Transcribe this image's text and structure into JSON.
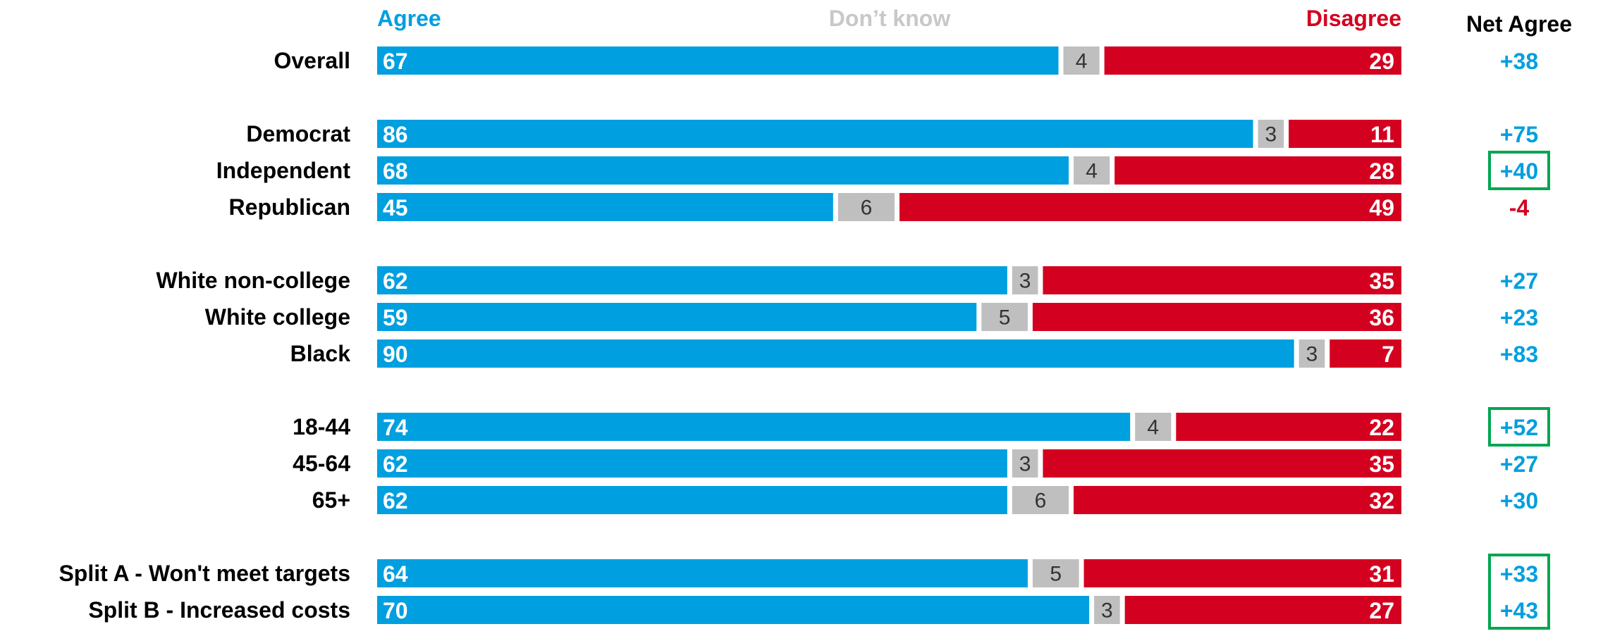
{
  "chart_data": {
    "type": "bar",
    "orientation": "horizontal",
    "stacked": true,
    "categories": [
      "Overall",
      null,
      "Democrat",
      "Independent",
      "Republican",
      null,
      "White non-college",
      "White college",
      "Black",
      null,
      "18-44",
      "45-64",
      "65+",
      null,
      "Split A - Won't meet targets",
      "Split B - Increased costs"
    ],
    "series": [
      {
        "name": "Agree",
        "color": "#009fdf",
        "values": [
          67,
          null,
          86,
          68,
          45,
          null,
          62,
          59,
          90,
          null,
          74,
          62,
          62,
          null,
          64,
          70
        ]
      },
      {
        "name": "Don’t know",
        "color": "#bfbfbf",
        "values": [
          4,
          null,
          3,
          4,
          6,
          null,
          3,
          5,
          3,
          null,
          4,
          3,
          6,
          null,
          5,
          3
        ]
      },
      {
        "name": "Disagree",
        "color": "#d3001f",
        "values": [
          29,
          null,
          11,
          28,
          49,
          null,
          35,
          36,
          7,
          null,
          22,
          35,
          32,
          null,
          31,
          27
        ]
      }
    ],
    "net_agree": {
      "name": "Net Agree",
      "values": [
        38,
        null,
        75,
        40,
        -4,
        null,
        27,
        23,
        83,
        null,
        52,
        27,
        30,
        null,
        33,
        43
      ],
      "value_labels": [
        "+38",
        null,
        "+75",
        "+40",
        "-4",
        null,
        "+27",
        "+23",
        "+83",
        null,
        "+52",
        "+27",
        "+30",
        null,
        "+33",
        "+43"
      ]
    },
    "highlight_color": "#00a651",
    "highlights": [
      [
        3
      ],
      [
        10
      ],
      [
        14,
        15
      ]
    ],
    "xlim": [
      0,
      100
    ]
  }
}
